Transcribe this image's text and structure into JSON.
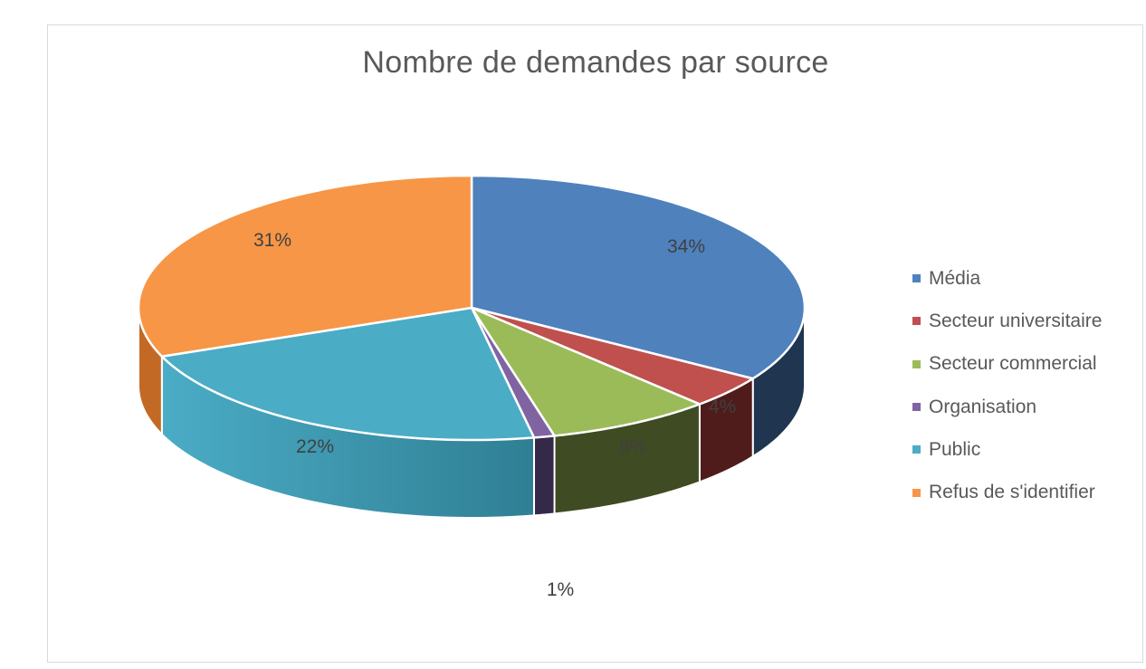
{
  "chart": {
    "title": "Nombre de demandes par source"
  },
  "legend": {
    "items": [
      {
        "label": "Média",
        "color": "#4f81bd"
      },
      {
        "label": "Secteur universitaire",
        "color": "#c0504d"
      },
      {
        "label": "Secteur commercial",
        "color": "#9bbb59"
      },
      {
        "label": "Organisation",
        "color": "#8064a2"
      },
      {
        "label": "Public",
        "color": "#4bacc6"
      },
      {
        "label": "Refus de s'identifier",
        "color": "#f79646"
      }
    ]
  },
  "chart_data": {
    "type": "pie",
    "title": "Nombre de demandes par source",
    "style": "3d",
    "categories": [
      "Média",
      "Secteur universitaire",
      "Secteur commercial",
      "Organisation",
      "Public",
      "Refus de s'identifier"
    ],
    "values": [
      34,
      4,
      8,
      1,
      22,
      31
    ],
    "value_labels": [
      "34%",
      "4%",
      "8%",
      "1%",
      "22%",
      "31%"
    ],
    "unit": "%",
    "colors": [
      "#4f81bd",
      "#c0504d",
      "#9bbb59",
      "#8064a2",
      "#4bacc6",
      "#f79646"
    ],
    "side_colors": [
      "#1f3550",
      "#4f1c1b",
      "#3f4b22",
      "#35294a",
      "#2f7f94",
      "#c26a25"
    ],
    "legend_position": "right",
    "start_angle_deg": 0,
    "direction": "clockwise"
  }
}
